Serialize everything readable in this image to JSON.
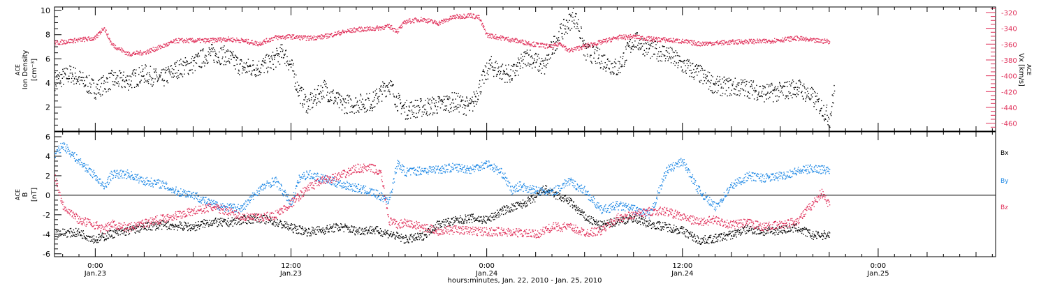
{
  "xaxis": {
    "title": "hours:minutes, Jan. 22, 2010 - Jan. 25, 2010",
    "range_hours": [
      -2.5,
      55.2
    ],
    "major_ticks": [
      {
        "hour": 0,
        "time": "0:00",
        "date": "Jan.23"
      },
      {
        "hour": 12,
        "time": "12:00",
        "date": "Jan.23"
      },
      {
        "hour": 24,
        "time": "0:00",
        "date": "Jan.24"
      },
      {
        "hour": 36,
        "time": "12:00",
        "date": "Jan.24"
      },
      {
        "hour": 48,
        "time": "0:00",
        "date": "Jan.25"
      }
    ]
  },
  "chart_data": [
    {
      "type": "scatter",
      "panel": "top",
      "ylabel_left": [
        "ACE",
        "Ion Density",
        "[cm⁻³]"
      ],
      "ylabel_right": [
        "ACE",
        "Vx [km/s]"
      ],
      "ylim_left": [
        0,
        10.3
      ],
      "yticks_left": [
        2,
        4,
        6,
        8,
        10
      ],
      "ylim_right": [
        -470,
        -313
      ],
      "yticks_right": [
        -460,
        -440,
        -420,
        -400,
        -380,
        -360,
        -340,
        -320
      ],
      "grid": false,
      "series": [
        {
          "name": "Ion Density",
          "axis": "left",
          "color": "#000000",
          "x": [
            -2.5,
            -1.5,
            0,
            1,
            2,
            3,
            4,
            5,
            6,
            7,
            8,
            9,
            10,
            10.8,
            11.5,
            12,
            12.5,
            13,
            13.5,
            14,
            15,
            16,
            17,
            18,
            18.5,
            19,
            20,
            21,
            22,
            23,
            23.8,
            24.2,
            24.8,
            25.5,
            26.5,
            27.5,
            28,
            28.5,
            29,
            29.3,
            29.6,
            30,
            30.5,
            31,
            32,
            33,
            34,
            35,
            36,
            37,
            38,
            39,
            40,
            41,
            42,
            43,
            44,
            44.8,
            45,
            45.3
          ],
          "y": [
            4.2,
            4.8,
            3.5,
            4.3,
            4.2,
            4.8,
            4.3,
            5.2,
            5.6,
            6.5,
            6.3,
            5.3,
            5.3,
            5.8,
            6.6,
            5.4,
            3.2,
            2.2,
            2.8,
            3.6,
            2.3,
            2.3,
            2.5,
            4.0,
            2.5,
            1.8,
            2.0,
            2.2,
            2.5,
            2.0,
            4.5,
            5.5,
            5.0,
            4.7,
            6.3,
            5.3,
            7.0,
            8.2,
            9.0,
            9.6,
            8.8,
            6.6,
            6.4,
            6.0,
            5.2,
            7.6,
            6.8,
            6.5,
            5.5,
            4.8,
            3.8,
            3.7,
            3.6,
            3.2,
            3.3,
            3.7,
            2.8,
            1.5,
            1.0,
            3.6
          ]
        },
        {
          "name": "Vx",
          "axis": "right",
          "color": "#e0305a",
          "x": [
            -2.5,
            -1,
            0,
            0.5,
            1,
            2,
            3,
            4,
            5,
            6,
            7,
            8,
            9,
            10,
            11,
            12,
            13,
            14,
            15,
            16,
            17,
            18,
            18.5,
            19,
            20,
            21,
            22,
            23,
            23.5,
            24,
            25,
            26,
            27,
            28,
            28.5,
            29,
            30,
            31,
            32,
            33,
            34,
            35,
            36,
            37,
            38,
            39,
            40,
            41,
            42,
            43,
            44,
            45
          ],
          "y": [
            -358,
            -354,
            -352,
            -338,
            -360,
            -372,
            -370,
            -363,
            -355,
            -355,
            -355,
            -353,
            -355,
            -359,
            -351,
            -350,
            -352,
            -350,
            -345,
            -341,
            -340,
            -337,
            -343,
            -331,
            -328,
            -333,
            -325,
            -323,
            -326,
            -348,
            -352,
            -356,
            -360,
            -363,
            -358,
            -368,
            -362,
            -357,
            -351,
            -350,
            -353,
            -354,
            -356,
            -359,
            -358,
            -357,
            -356,
            -356,
            -354,
            -352,
            -355,
            -356
          ]
        }
      ]
    },
    {
      "type": "scatter",
      "panel": "bottom",
      "ylabel_left": [
        "ACE",
        "B",
        "[nT]"
      ],
      "ylim": [
        -6.3,
        6.5
      ],
      "yticks": [
        -6,
        -4,
        -2,
        0,
        2,
        4,
        6
      ],
      "zero_line": true,
      "grid": false,
      "series": [
        {
          "name": "Bx",
          "color": "#000000",
          "x": [
            -2.5,
            -1,
            0,
            1,
            2,
            3,
            4,
            5,
            6,
            7,
            8,
            9,
            10,
            11,
            12,
            13,
            14,
            15,
            16,
            17,
            18,
            19,
            20,
            21,
            22,
            23,
            24,
            25,
            26,
            27,
            27.5,
            28,
            29,
            30,
            31,
            32,
            33,
            34,
            35,
            36,
            37,
            38,
            39,
            40,
            41,
            42,
            43,
            44,
            45
          ],
          "y": [
            -3.8,
            -3.8,
            -4.5,
            -3.9,
            -3.6,
            -3.2,
            -3.0,
            -3.1,
            -3.2,
            -2.7,
            -2.8,
            -2.5,
            -2.3,
            -2.7,
            -3.3,
            -3.7,
            -3.5,
            -3.2,
            -3.6,
            -3.5,
            -3.9,
            -4.5,
            -4.2,
            -2.9,
            -2.6,
            -2.3,
            -2.5,
            -1.5,
            -1.0,
            -0.2,
            0.7,
            0.2,
            -0.5,
            -2.2,
            -3.1,
            -2.6,
            -2.3,
            -2.9,
            -3.2,
            -3.6,
            -4.6,
            -4.4,
            -4.0,
            -3.4,
            -3.7,
            -3.5,
            -3.3,
            -4.1,
            -4.0
          ]
        },
        {
          "name": "By",
          "color": "#1e88e5",
          "x": [
            -2.5,
            -2,
            -1,
            0,
            0.5,
            1,
            2,
            3,
            4,
            5,
            6,
            7,
            8,
            9,
            10,
            11,
            12,
            12.5,
            13,
            14,
            15,
            16,
            17,
            18,
            18.5,
            19,
            20,
            21,
            22,
            23,
            24,
            25,
            25.5,
            26,
            27,
            28,
            29,
            30,
            31,
            32,
            33,
            34,
            35,
            36,
            37,
            38,
            39,
            40,
            41,
            42,
            43,
            44,
            45
          ],
          "y": [
            4.2,
            5.2,
            3.5,
            2.0,
            0.8,
            2.2,
            2.2,
            1.5,
            1.2,
            0.4,
            0.1,
            -0.8,
            -1.2,
            -1.3,
            0.6,
            1.6,
            -0.8,
            1.8,
            2.2,
            1.7,
            1.2,
            0.8,
            0.3,
            -0.5,
            3.3,
            2.4,
            2.6,
            2.7,
            2.9,
            2.7,
            3.3,
            2.2,
            0.5,
            1.0,
            0.5,
            0.3,
            1.5,
            0.5,
            -1.5,
            -1.0,
            -1.4,
            -2.0,
            2.6,
            3.5,
            0.5,
            -1.2,
            1.0,
            2.0,
            1.8,
            2.0,
            2.5,
            2.8,
            2.6
          ]
        },
        {
          "name": "Bz",
          "color": "#e0305a",
          "x": [
            -2.5,
            -2,
            -1,
            0,
            0.5,
            1,
            2,
            3,
            4,
            5,
            6,
            7,
            8,
            9,
            10,
            11,
            12,
            13,
            14,
            15,
            16,
            17,
            17.5,
            18,
            18.5,
            19,
            20,
            21,
            22,
            23,
            24,
            25,
            26,
            27,
            28,
            29,
            30,
            31,
            32,
            33,
            34,
            35,
            36,
            37,
            38,
            39,
            40,
            41,
            42,
            43,
            44,
            44.5,
            45
          ],
          "y": [
            2.0,
            -1.0,
            -2.5,
            -3.0,
            -3.5,
            -2.9,
            -3.3,
            -2.8,
            -2.4,
            -2.0,
            -1.6,
            -1.2,
            -1.5,
            -2.2,
            -2.3,
            -2.0,
            -0.8,
            0.8,
            1.6,
            2.0,
            2.8,
            2.8,
            2.2,
            -2.6,
            -3.0,
            -2.8,
            -3.2,
            -3.6,
            -3.5,
            -3.6,
            -3.7,
            -3.7,
            -3.8,
            -4.0,
            -3.2,
            -3.2,
            -3.8,
            -3.6,
            -2.3,
            -2.0,
            -1.6,
            -1.6,
            -2.2,
            -2.7,
            -2.5,
            -3.0,
            -2.8,
            -3.2,
            -3.0,
            -2.6,
            -0.8,
            0.3,
            -1.0
          ]
        }
      ],
      "legend": [
        {
          "label": "Bx",
          "color": "#000000"
        },
        {
          "label": "By",
          "color": "#1e88e5"
        },
        {
          "label": "Bz",
          "color": "#e0305a"
        }
      ],
      "legend_placement": "right"
    }
  ]
}
